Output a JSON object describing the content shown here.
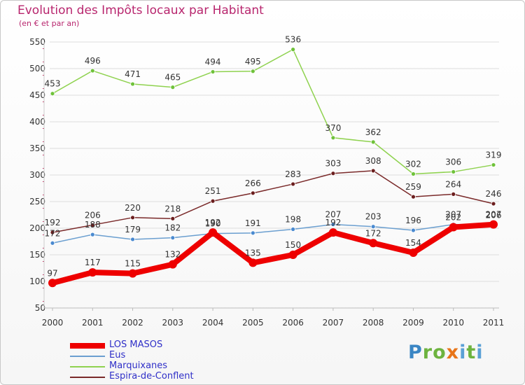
{
  "header": {
    "title": "Evolution des Impôts locaux par Habitant",
    "subtitle": "(en € et par an)"
  },
  "logo": {
    "text": "Proxiti"
  },
  "colors": {
    "title": "#b8266e",
    "axis_text": "#333333",
    "grid": "#dddddd"
  },
  "chart_data": {
    "type": "line",
    "title": "Evolution des Impôts locaux par Habitant",
    "subtitle": "(en € et par an)",
    "xlabel": "",
    "ylabel": "",
    "x": [
      2000,
      2001,
      2002,
      2003,
      2004,
      2005,
      2006,
      2007,
      2008,
      2009,
      2010,
      2011
    ],
    "ylim": [
      50,
      550
    ],
    "yticks": [
      50,
      100,
      150,
      200,
      250,
      300,
      350,
      400,
      450,
      500,
      550
    ],
    "grid": true,
    "legend_position": "bottom-left",
    "series": [
      {
        "name": "Marquixanes",
        "color": "#8fd24f",
        "markerColor": "#6fc23a",
        "width": 1.5,
        "marker": 3,
        "labelPos": "above",
        "values": [
          453,
          496,
          471,
          465,
          494,
          495,
          536,
          370,
          362,
          302,
          306,
          319
        ]
      },
      {
        "name": "Espira-de-Conflent",
        "color": "#7a2a2a",
        "markerColor": "#6b1e1e",
        "width": 1.5,
        "marker": 3,
        "labelPos": "above",
        "values": [
          192,
          206,
          220,
          218,
          251,
          266,
          283,
          303,
          308,
          259,
          264,
          246
        ]
      },
      {
        "name": "Eus",
        "color": "#6b9fd0",
        "markerColor": "#4a8ad0",
        "width": 1.5,
        "marker": 3,
        "labelPos": "above",
        "values": [
          172,
          188,
          179,
          182,
          190,
          191,
          198,
          207,
          203,
          196,
          207,
          206
        ]
      },
      {
        "name": "LOS MASOS",
        "color": "#ee0000",
        "markerColor": "#ee0000",
        "width": 8,
        "marker": 6,
        "labelPos": "above",
        "values": [
          97,
          117,
          115,
          132,
          192,
          135,
          150,
          192,
          172,
          154,
          202,
          207
        ]
      }
    ]
  }
}
